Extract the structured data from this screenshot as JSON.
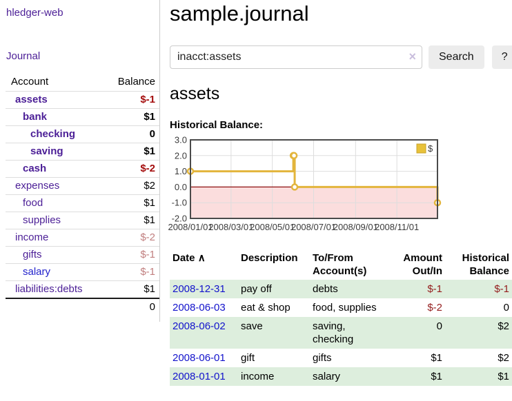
{
  "app": {
    "brand": "hledger-web",
    "nav_journal": "Journal"
  },
  "sidebar": {
    "header": {
      "account": "Account",
      "balance": "Balance"
    },
    "accounts": [
      {
        "name": "assets",
        "indent": 1,
        "bold": true,
        "balance": "$-1",
        "balance_style": "neg-strong"
      },
      {
        "name": "bank",
        "indent": 2,
        "bold": true,
        "balance": "$1",
        "balance_style": "pos-strong"
      },
      {
        "name": "checking",
        "indent": 3,
        "bold": true,
        "balance": "0",
        "balance_style": "pos-strong"
      },
      {
        "name": "saving",
        "indent": 3,
        "bold": true,
        "balance": "$1",
        "balance_style": "pos-strong"
      },
      {
        "name": "cash",
        "indent": 2,
        "bold": true,
        "balance": "$-2",
        "balance_style": "neg-strong"
      },
      {
        "name": "expenses",
        "indent": 1,
        "bold": false,
        "balance": "$2",
        "balance_style": "pos"
      },
      {
        "name": "food",
        "indent": 2,
        "bold": false,
        "balance": "$1",
        "balance_style": "pos"
      },
      {
        "name": "supplies",
        "indent": 2,
        "bold": false,
        "balance": "$1",
        "balance_style": "pos"
      },
      {
        "name": "income",
        "indent": 1,
        "bold": false,
        "balance": "$-2",
        "balance_style": "neg-muted"
      },
      {
        "name": "gifts",
        "indent": 2,
        "bold": false,
        "balance": "$-1",
        "balance_style": "neg-muted"
      },
      {
        "name": "salary",
        "indent": 2,
        "bold": false,
        "balance": "$-1",
        "balance_style": "neg-muted",
        "link_style": "blue"
      },
      {
        "name": "liabilities:debts",
        "indent": 1,
        "bold": false,
        "balance": "$1",
        "balance_style": "pos"
      }
    ],
    "total": "0"
  },
  "header": {
    "title": "sample.journal"
  },
  "search": {
    "value": "inacct:assets",
    "clear_icon": "×",
    "button_label": "Search",
    "help_label": "?"
  },
  "account_page": {
    "title": "assets",
    "chart_label": "Historical Balance:"
  },
  "chart_data": {
    "type": "line",
    "title": "Historical Balance",
    "legend": [
      "$"
    ],
    "legend_position": "top-right",
    "grid": true,
    "x_range": [
      "2008-01-01",
      "2008-12-31"
    ],
    "x_ticks": [
      "2008/01/01",
      "2008/03/01",
      "2008/05/01",
      "2008/07/01",
      "2008/09/01",
      "2008/11/01"
    ],
    "y_ticks": [
      "3.0",
      "2.0",
      "1.0",
      "0.0",
      "-1.0",
      "-2.0"
    ],
    "ylim": [
      -2,
      3
    ],
    "series": [
      {
        "name": "$",
        "style": "step-after",
        "points": [
          [
            "2008-01-01",
            1
          ],
          [
            "2008-06-01",
            2
          ],
          [
            "2008-06-02",
            2
          ],
          [
            "2008-06-03",
            0
          ],
          [
            "2008-12-31",
            -1
          ]
        ]
      }
    ],
    "colors": {
      "line": "#e3b53c",
      "marker_fill": "#ffffff",
      "legend_square": "#e8c23a",
      "legend_square_border": "#c9a32b",
      "negative_region": "#fbdddd",
      "zero_line": "#8d0d0d",
      "gridline": "#dddddd",
      "plot_border": "#4a4a4a",
      "tick_text": "#3a3a3a"
    }
  },
  "transactions": {
    "headers": {
      "date": "Date",
      "sort_icon": "∧",
      "description": "Description",
      "tofrom": "To/From Account(s)",
      "amount": "Amount Out/In",
      "balance": "Historical Balance"
    },
    "rows": [
      {
        "date": "2008-12-31",
        "description": "pay off",
        "accounts": "debts",
        "amount": "$-1",
        "amount_neg": true,
        "balance": "$-1",
        "balance_neg": true
      },
      {
        "date": "2008-06-03",
        "description": "eat & shop",
        "accounts": "food, supplies",
        "amount": "$-2",
        "amount_neg": true,
        "balance": "0",
        "balance_neg": false
      },
      {
        "date": "2008-06-02",
        "description": "save",
        "accounts": "saving, checking",
        "amount": "0",
        "amount_neg": false,
        "balance": "$2",
        "balance_neg": false
      },
      {
        "date": "2008-06-01",
        "description": "gift",
        "accounts": "gifts",
        "amount": "$1",
        "amount_neg": false,
        "balance": "$2",
        "balance_neg": false
      },
      {
        "date": "2008-01-01",
        "description": "income",
        "accounts": "salary",
        "amount": "$1",
        "amount_neg": false,
        "balance": "$1",
        "balance_neg": false
      }
    ]
  },
  "colors": {
    "link_purple": "#4b1e96",
    "link_blue": "#2222cc",
    "date_link_blue": "#1212cc",
    "row_stripe_green": "#ddeedd",
    "neg_strong_red": "#a40d0d",
    "neg_muted_red": "#c17f7f",
    "neg_table_red": "#941d1d"
  }
}
